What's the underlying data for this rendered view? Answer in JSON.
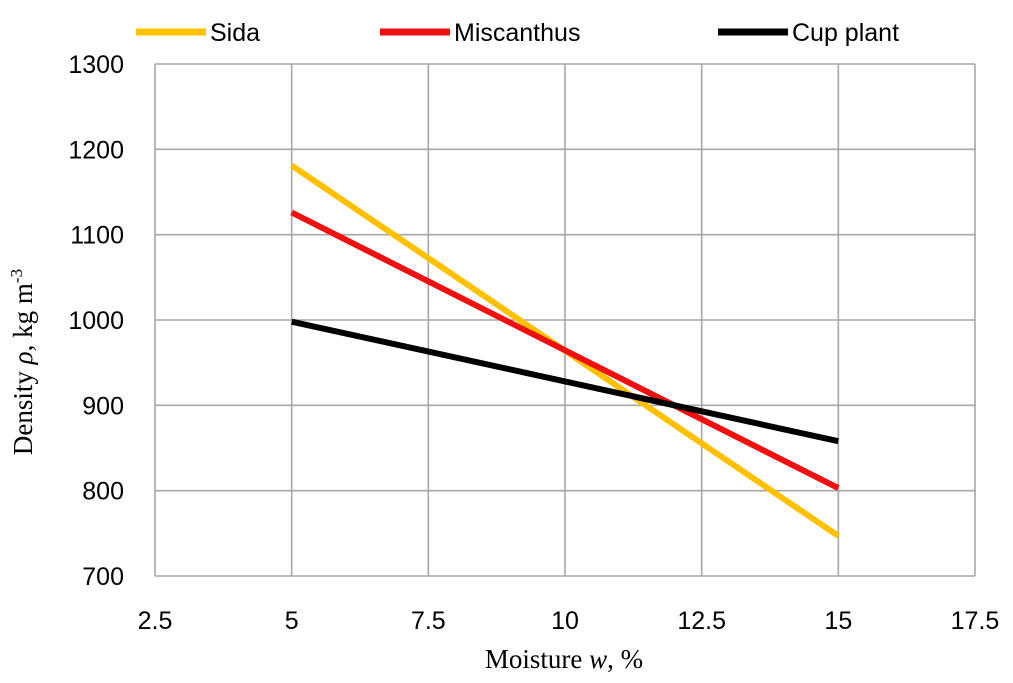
{
  "chart_data": {
    "type": "line",
    "title": "",
    "xlabel": {
      "prefix": "Moisture ",
      "var": "w",
      "suffix": ", %"
    },
    "ylabel": {
      "prefix": "Density ",
      "var": "ρ",
      "suffix": ", kg m",
      "sup": "-3"
    },
    "xlim": [
      2.5,
      17.5
    ],
    "ylim": [
      700,
      1300
    ],
    "xticks": [
      2.5,
      5,
      7.5,
      10,
      12.5,
      15,
      17.5
    ],
    "xtick_labels": [
      "2.5",
      "5",
      "7.5",
      "10",
      "12.5",
      "15",
      "17.5"
    ],
    "yticks": [
      700,
      800,
      900,
      1000,
      1100,
      1200,
      1300
    ],
    "ytick_labels": [
      "700",
      "800",
      "900",
      "1000",
      "1100",
      "1200",
      "1300"
    ],
    "grid": true,
    "legend_position": "top",
    "series": [
      {
        "name": "Sida",
        "color": "#FFC000",
        "x": [
          5,
          15
        ],
        "y": [
          1181,
          747
        ]
      },
      {
        "name": "Miscanthus",
        "color": "#EE1111",
        "x": [
          5,
          15
        ],
        "y": [
          1126,
          803
        ]
      },
      {
        "name": "Cup plant",
        "color": "#000000",
        "x": [
          5,
          15
        ],
        "y": [
          998,
          858
        ]
      }
    ]
  }
}
